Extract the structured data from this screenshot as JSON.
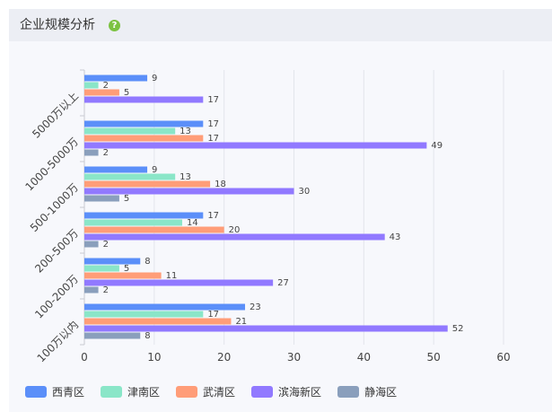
{
  "panel": {
    "title": "企业规模分析",
    "help_icon": "question-circle-icon",
    "help_glyph": "?"
  },
  "chart_data": {
    "type": "bar",
    "orientation": "horizontal",
    "categories": [
      "5000万以上",
      "1000-5000万",
      "500-1000万",
      "200-500万",
      "100-200万",
      "100万以内"
    ],
    "series": [
      {
        "name": "西青区",
        "color": "#5b8ff9",
        "values": [
          9,
          17,
          9,
          17,
          8,
          23
        ]
      },
      {
        "name": "津南区",
        "color": "#8ae6c8",
        "values": [
          2,
          13,
          13,
          14,
          5,
          17
        ]
      },
      {
        "name": "武清区",
        "color": "#ff9d78",
        "values": [
          5,
          17,
          18,
          20,
          11,
          21
        ]
      },
      {
        "name": "滨海新区",
        "color": "#9179ff",
        "values": [
          17,
          49,
          30,
          43,
          27,
          52
        ]
      },
      {
        "name": "静海区",
        "color": "#8a9fbc",
        "values": [
          null,
          2,
          5,
          2,
          2,
          8
        ]
      }
    ],
    "x_ticks": [
      0,
      10,
      20,
      30,
      40,
      50,
      60
    ],
    "xlim": [
      0,
      60
    ],
    "grid": true,
    "legend": "bottom-left",
    "data_labels": true
  }
}
